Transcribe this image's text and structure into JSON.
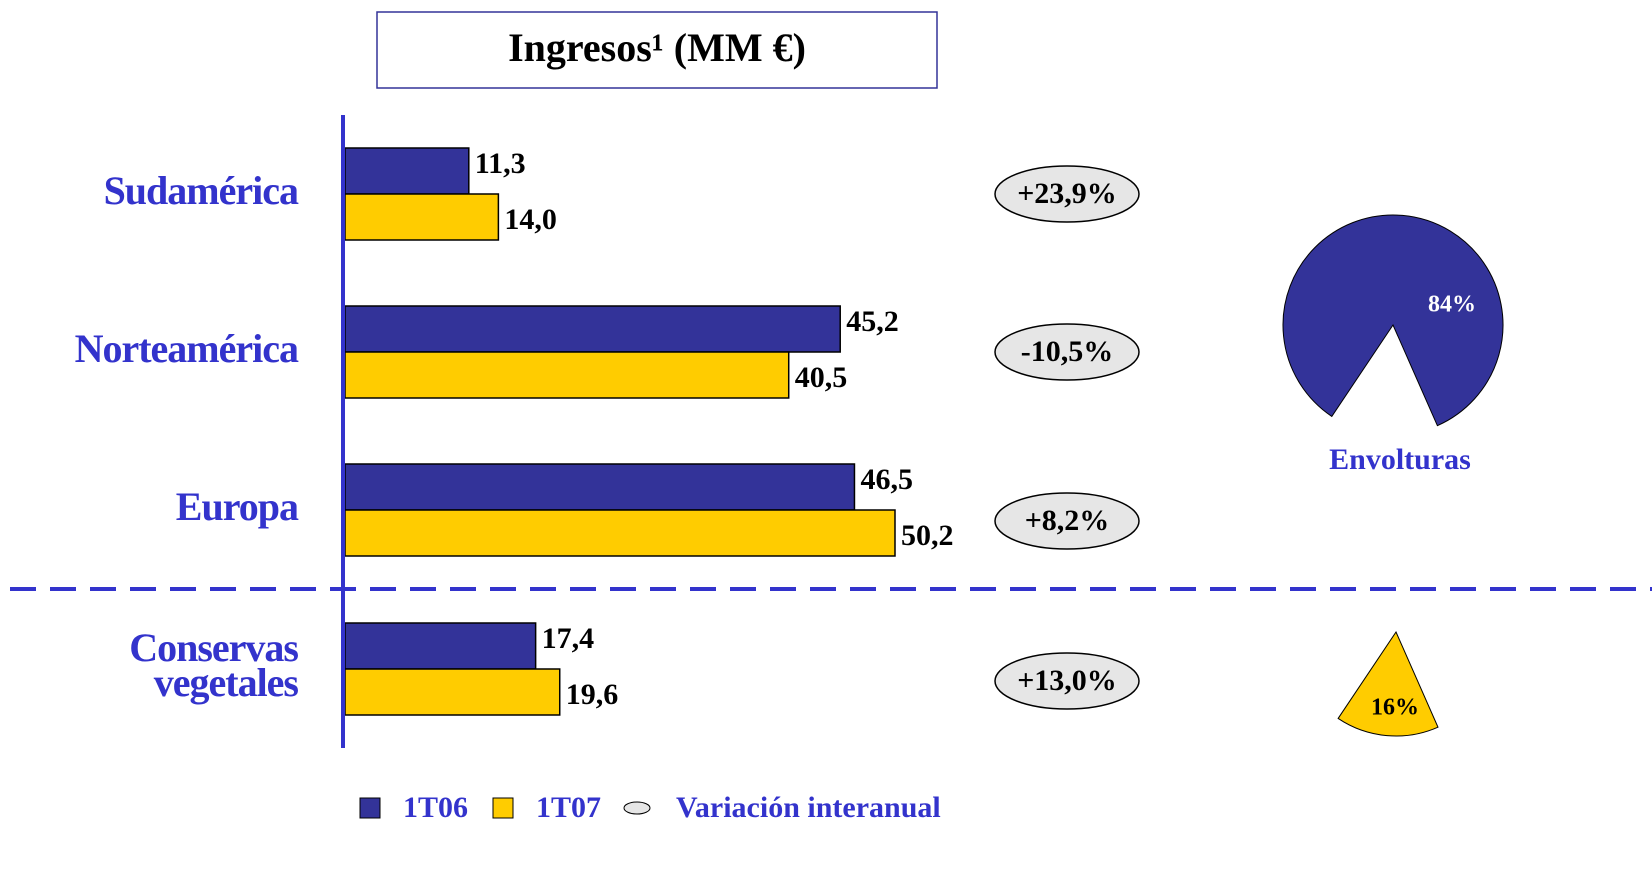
{
  "chart_data": [
    {
      "type": "bar",
      "orientation": "horizontal",
      "title": "Ingresos¹ (MM €)",
      "categories": [
        "Sudamérica",
        "Norteamérica",
        "Europa",
        "Conservas vegetales"
      ],
      "series": [
        {
          "name": "1T06",
          "color": "#333399",
          "values": [
            11.3,
            45.2,
            46.5,
            17.4
          ],
          "value_labels": [
            "11,3",
            "45,2",
            "46,5",
            "17,4"
          ]
        },
        {
          "name": "1T07",
          "color": "#ffcc00",
          "values": [
            14.0,
            40.5,
            50.2,
            19.6
          ],
          "value_labels": [
            "14,0",
            "40,5",
            "50,2",
            "19,6"
          ]
        }
      ],
      "variation": {
        "name": "Variación interanual",
        "color": "#e6e6e6",
        "values": [
          23.9,
          -10.5,
          8.2,
          13.0
        ],
        "value_labels": [
          "+23,9%",
          "-10,5%",
          "+8,2%",
          "+13,0%"
        ]
      }
    },
    {
      "type": "pie",
      "categories": [
        "Envolturas",
        null
      ],
      "values": [
        84,
        16
      ],
      "value_labels": [
        "84%",
        "16%"
      ],
      "colors": [
        "#333399",
        "#ffcc00"
      ]
    }
  ]
}
